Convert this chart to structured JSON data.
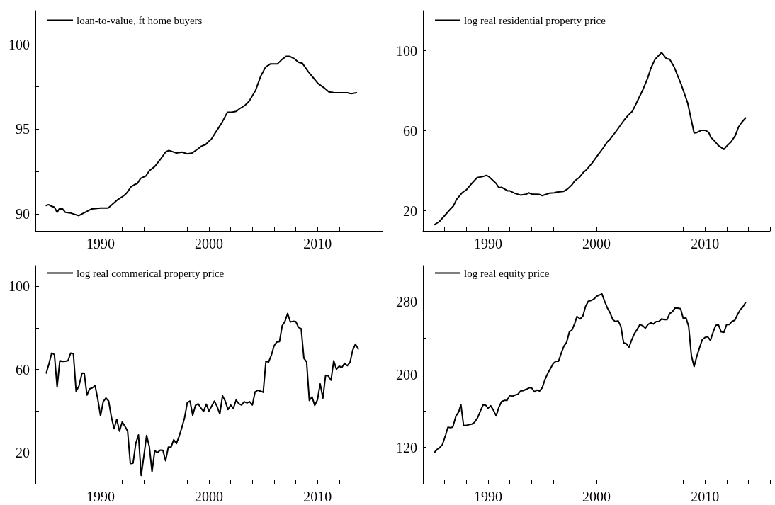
{
  "chart_data": [
    {
      "type": "line",
      "legend": "top left",
      "line_style": "solid",
      "xlim": [
        1984,
        2016
      ],
      "ylim": [
        89,
        102
      ],
      "xticks": [
        {
          "value": 1986,
          "label": null
        },
        {
          "value": 1988,
          "label": null
        },
        1990,
        {
          "value": 1992,
          "label": null
        },
        {
          "value": 1994,
          "label": null
        },
        {
          "value": 1996,
          "label": null
        },
        {
          "value": 1998,
          "label": null
        },
        2000,
        {
          "value": 2002,
          "label": null
        },
        {
          "value": 2004,
          "label": null
        },
        {
          "value": 2006,
          "label": null
        },
        {
          "value": 2008,
          "label": null
        },
        2010,
        {
          "value": 2012,
          "label": null
        },
        {
          "value": 2014,
          "label": null
        },
        {
          "value": 2016,
          "label": null
        }
      ],
      "yticks": [
        90,
        {
          "value": 92.5,
          "label": null
        },
        95,
        {
          "value": 97.5,
          "label": null
        },
        100
      ],
      "x": [
        1985.0,
        1985.2,
        1985.5,
        1985.75,
        1986.0,
        1986.2,
        1986.5,
        1986.75,
        1987.25,
        1988.0,
        1988.6,
        1989.2,
        1990.0,
        1990.7,
        1991.5,
        1992.2,
        1992.5,
        1992.8,
        1993.2,
        1993.4,
        1993.7,
        1994.2,
        1994.5,
        1995.0,
        1995.55,
        1996.0,
        1996.3,
        1997.0,
        1997.5,
        1998.0,
        1998.45,
        1999.0,
        1999.3,
        1999.7,
        2000.0,
        2000.2,
        2000.7,
        2001.2,
        2001.7,
        2002.1,
        2002.5,
        2002.8,
        2003.3,
        2003.7,
        2004.3,
        2004.75,
        2005.2,
        2005.65,
        2006.3,
        2006.7,
        2007.1,
        2007.45,
        2007.9,
        2008.25,
        2008.6,
        2009.15,
        2009.6,
        2010.05,
        2010.6,
        2011.05,
        2011.6,
        2012.2,
        2012.75,
        2013.1,
        2013.6
      ],
      "series": [
        {
          "name": "loan-to-value, ft home buyers",
          "color": "#000000",
          "values": [
            90.5,
            90.55,
            90.45,
            90.4,
            90.1,
            90.3,
            90.3,
            90.1,
            90.05,
            89.9,
            90.1,
            90.3,
            90.35,
            90.35,
            90.8,
            91.1,
            91.3,
            91.6,
            91.75,
            91.8,
            92.1,
            92.25,
            92.55,
            92.8,
            93.25,
            93.65,
            93.75,
            93.6,
            93.65,
            93.55,
            93.6,
            93.85,
            94.0,
            94.1,
            94.3,
            94.4,
            94.9,
            95.4,
            96.0,
            96.0,
            96.05,
            96.2,
            96.4,
            96.65,
            97.3,
            98.1,
            98.65,
            98.85,
            98.85,
            99.1,
            99.3,
            99.3,
            99.15,
            98.95,
            98.9,
            98.4,
            98.05,
            97.7,
            97.45,
            97.2,
            97.15,
            97.15,
            97.15,
            97.1,
            97.15
          ]
        }
      ]
    },
    {
      "type": "line",
      "legend": "top left",
      "line_style": "solid",
      "xlim": [
        1984,
        2016
      ],
      "ylim": [
        10,
        120
      ],
      "xticks": [
        {
          "value": 1986,
          "label": null
        },
        {
          "value": 1988,
          "label": null
        },
        1990,
        {
          "value": 1992,
          "label": null
        },
        {
          "value": 1994,
          "label": null
        },
        {
          "value": 1996,
          "label": null
        },
        {
          "value": 1998,
          "label": null
        },
        2000,
        {
          "value": 2002,
          "label": null
        },
        {
          "value": 2004,
          "label": null
        },
        {
          "value": 2006,
          "label": null
        },
        {
          "value": 2008,
          "label": null
        },
        2010,
        {
          "value": 2012,
          "label": null
        },
        {
          "value": 2014,
          "label": null
        },
        {
          "value": 2016,
          "label": null
        }
      ],
      "yticks": [
        20,
        {
          "value": 40,
          "label": null
        },
        60,
        {
          "value": 80,
          "label": null
        },
        100,
        {
          "value": 120,
          "label": null
        }
      ],
      "x": [
        1985.06,
        1985.5,
        1986.0,
        1986.5,
        1986.8,
        1987.1,
        1987.6,
        1988.0,
        1988.5,
        1989.0,
        1989.5,
        1989.85,
        1990.05,
        1990.75,
        1991.0,
        1991.25,
        1991.8,
        1992.0,
        1992.45,
        1993.0,
        1993.5,
        1993.75,
        1994.05,
        1994.75,
        1995.0,
        1995.65,
        1996.1,
        1996.35,
        1996.95,
        1997.35,
        1997.7,
        1998.0,
        1998.4,
        1998.8,
        1999.05,
        1999.6,
        2000.2,
        2000.6,
        2001.0,
        2001.2,
        2001.9,
        2002.5,
        2002.9,
        2003.3,
        2003.7,
        2004.25,
        2004.7,
        2005.0,
        2005.4,
        2006.0,
        2006.45,
        2006.75,
        2007.15,
        2007.8,
        2008.4,
        2009.0,
        2009.25,
        2009.65,
        2010.05,
        2010.35,
        2010.55,
        2010.9,
        2011.25,
        2011.75,
        2012.0,
        2012.4,
        2012.8,
        2013.1,
        2013.4,
        2013.75
      ],
      "series": [
        {
          "name": "log real residential property price",
          "color": "#000000",
          "values": [
            13.1,
            14.6,
            17.6,
            20.7,
            22.4,
            25.7,
            29.0,
            30.5,
            33.7,
            36.6,
            37.1,
            37.7,
            37.2,
            33.7,
            31.6,
            31.8,
            30.0,
            30.0,
            28.8,
            27.9,
            28.3,
            29.0,
            28.4,
            28.2,
            27.6,
            28.8,
            29.0,
            29.4,
            29.7,
            31.0,
            32.8,
            35.0,
            36.6,
            39.3,
            40.4,
            43.9,
            48.4,
            51.3,
            54.5,
            55.4,
            60.4,
            65.0,
            67.6,
            69.7,
            74.0,
            80.2,
            86.0,
            91.0,
            95.7,
            99.1,
            96.0,
            95.7,
            92.0,
            83.3,
            74.0,
            58.9,
            59.1,
            60.2,
            60.2,
            59.1,
            56.7,
            54.8,
            52.6,
            50.7,
            52.3,
            54.4,
            57.6,
            61.9,
            64.3,
            66.4
          ]
        }
      ]
    },
    {
      "type": "line",
      "legend": "top left",
      "line_style": "solid",
      "xlim": [
        1984,
        2016
      ],
      "ylim": [
        5,
        110
      ],
      "xticks": [
        {
          "value": 1986,
          "label": null
        },
        {
          "value": 1988,
          "label": null
        },
        1990,
        {
          "value": 1992,
          "label": null
        },
        {
          "value": 1994,
          "label": null
        },
        {
          "value": 1996,
          "label": null
        },
        {
          "value": 1998,
          "label": null
        },
        2000,
        {
          "value": 2002,
          "label": null
        },
        {
          "value": 2004,
          "label": null
        },
        {
          "value": 2006,
          "label": null
        },
        {
          "value": 2008,
          "label": null
        },
        2010,
        {
          "value": 2012,
          "label": null
        },
        {
          "value": 2014,
          "label": null
        },
        {
          "value": 2016,
          "label": null
        }
      ],
      "yticks": [
        20,
        {
          "value": 40,
          "label": null
        },
        60,
        {
          "value": 80,
          "label": null
        },
        100
      ],
      "x": [
        1985.0,
        1985.25,
        1985.5,
        1985.75,
        1986.0,
        1986.25,
        1986.5,
        1986.75,
        1987.0,
        1987.25,
        1987.5,
        1987.75,
        1988.0,
        1988.3,
        1988.5,
        1988.75,
        1989.0,
        1989.25,
        1989.5,
        1989.75,
        1990.0,
        1990.25,
        1990.5,
        1990.75,
        1991.0,
        1991.25,
        1991.5,
        1991.75,
        1992.0,
        1992.25,
        1992.5,
        1992.75,
        1993.0,
        1993.25,
        1993.5,
        1993.75,
        1994.0,
        1994.25,
        1994.5,
        1994.75,
        1995.0,
        1995.25,
        1995.5,
        1995.75,
        1996.0,
        1996.25,
        1996.5,
        1996.75,
        1997.0,
        1997.25,
        1997.5,
        1997.75,
        1998.0,
        1998.25,
        1998.5,
        1998.75,
        1999.0,
        1999.25,
        1999.5,
        1999.75,
        2000.0,
        2000.25,
        2000.5,
        2000.75,
        2001.0,
        2001.25,
        2001.5,
        2001.75,
        2002.0,
        2002.25,
        2002.5,
        2002.75,
        2003.0,
        2003.25,
        2003.5,
        2003.75,
        2004.0,
        2004.25,
        2004.5,
        2004.75,
        2005.0,
        2005.25,
        2005.5,
        2005.75,
        2006.0,
        2006.25,
        2006.5,
        2006.75,
        2007.0,
        2007.25,
        2007.5,
        2007.75,
        2008.0,
        2008.25,
        2008.5,
        2008.75,
        2009.0,
        2009.25,
        2009.5,
        2009.75,
        2010.0,
        2010.25,
        2010.5,
        2010.75,
        2011.0,
        2011.25,
        2011.5,
        2011.75,
        2012.0,
        2012.25,
        2012.5,
        2012.75,
        2013.0,
        2013.25,
        2013.5,
        2013.75
      ],
      "series": [
        {
          "name": "log real commerical property price",
          "color": "#000000",
          "values": [
            58.3,
            62.8,
            67.9,
            67.2,
            51.6,
            64.2,
            63.9,
            64.0,
            64.2,
            67.9,
            67.5,
            49.6,
            51.9,
            58.3,
            58.2,
            47.7,
            50.7,
            51.2,
            52.2,
            45.7,
            37.7,
            44.5,
            46.3,
            44.8,
            37.2,
            31.5,
            36.0,
            30.3,
            34.7,
            32.7,
            30.3,
            14.7,
            14.9,
            24.4,
            28.5,
            9.0,
            18.5,
            28.3,
            22.9,
            10.8,
            20.9,
            20.0,
            21.2,
            21.1,
            16.1,
            22.6,
            22.6,
            26.2,
            24.4,
            27.9,
            32.1,
            36.8,
            44.1,
            44.8,
            38.0,
            42.7,
            43.5,
            41.5,
            39.8,
            43.3,
            40.0,
            42.4,
            44.8,
            42.1,
            38.6,
            47.4,
            44.8,
            40.7,
            42.9,
            41.3,
            45.3,
            43.6,
            42.9,
            44.5,
            43.9,
            44.5,
            42.9,
            49.2,
            50.0,
            49.6,
            49.0,
            64.0,
            63.6,
            66.9,
            71.4,
            73.2,
            73.4,
            81.1,
            83.1,
            87.0,
            82.9,
            83.2,
            83.1,
            80.3,
            79.6,
            65.4,
            63.7,
            45.1,
            46.8,
            42.7,
            45.4,
            53.1,
            46.2,
            57.2,
            56.9,
            54.9,
            64.2,
            60.1,
            61.6,
            61.0,
            63.0,
            61.8,
            63.4,
            69.3,
            72.2,
            69.9
          ]
        }
      ]
    },
    {
      "type": "line",
      "legend": "top left",
      "line_style": "solid",
      "xlim": [
        1984,
        2016
      ],
      "ylim": [
        80,
        320
      ],
      "xticks": [
        {
          "value": 1986,
          "label": null
        },
        {
          "value": 1988,
          "label": null
        },
        1990,
        {
          "value": 1992,
          "label": null
        },
        {
          "value": 1994,
          "label": null
        },
        {
          "value": 1996,
          "label": null
        },
        {
          "value": 1998,
          "label": null
        },
        2000,
        {
          "value": 2002,
          "label": null
        },
        {
          "value": 2004,
          "label": null
        },
        {
          "value": 2006,
          "label": null
        },
        {
          "value": 2008,
          "label": null
        },
        2010,
        {
          "value": 2012,
          "label": null
        },
        {
          "value": 2014,
          "label": null
        },
        {
          "value": 2016,
          "label": null
        }
      ],
      "yticks": [
        120,
        {
          "value": 160,
          "label": null
        },
        200,
        {
          "value": 240,
          "label": null
        },
        280,
        {
          "value": 320,
          "label": null
        }
      ],
      "x": [
        1985.05,
        1985.3,
        1985.5,
        1985.8,
        1986.1,
        1986.3,
        1986.55,
        1986.75,
        1987.05,
        1987.3,
        1987.5,
        1987.75,
        1988.0,
        1988.3,
        1988.5,
        1988.75,
        1989.05,
        1989.3,
        1989.55,
        1989.8,
        1990.0,
        1990.25,
        1990.5,
        1990.75,
        1991.0,
        1991.25,
        1991.5,
        1991.75,
        1992.0,
        1992.25,
        1992.5,
        1992.75,
        1993.0,
        1993.25,
        1993.5,
        1993.8,
        1994.0,
        1994.3,
        1994.5,
        1994.75,
        1995.0,
        1995.25,
        1995.5,
        1995.75,
        1996.0,
        1996.25,
        1996.5,
        1996.75,
        1997.0,
        1997.25,
        1997.5,
        1997.75,
        1998.0,
        1998.2,
        1998.5,
        1998.75,
        1999.0,
        1999.25,
        1999.5,
        1999.8,
        2000.0,
        2000.25,
        2000.5,
        2000.75,
        2001.0,
        2001.25,
        2001.5,
        2001.75,
        2002.0,
        2002.25,
        2002.5,
        2002.75,
        2003.0,
        2003.25,
        2003.5,
        2003.75,
        2004.0,
        2004.25,
        2004.5,
        2004.75,
        2005.0,
        2005.25,
        2005.5,
        2005.75,
        2006.0,
        2006.25,
        2006.5,
        2006.75,
        2007.0,
        2007.25,
        2007.5,
        2007.75,
        2008.0,
        2008.25,
        2008.5,
        2008.75,
        2009.0,
        2009.25,
        2009.5,
        2009.75,
        2010.0,
        2010.25,
        2010.5,
        2010.75,
        2011.0,
        2011.25,
        2011.5,
        2011.75,
        2012.0,
        2012.25,
        2012.5,
        2012.75,
        2013.0,
        2013.25,
        2013.5,
        2013.75
      ],
      "series": [
        {
          "name": "log real equity price",
          "color": "#000000",
          "values": [
            114.3,
            117.8,
            119.2,
            123.2,
            134.0,
            142.1,
            141.8,
            142.4,
            154.7,
            159.1,
            167.1,
            143.9,
            144.2,
            145.3,
            145.6,
            147.5,
            152.9,
            160.1,
            166.9,
            166.3,
            163.1,
            165.8,
            160.9,
            154.7,
            164.2,
            170.4,
            171.7,
            171.7,
            177.1,
            176.3,
            177.6,
            178.5,
            182.0,
            182.5,
            183.8,
            185.5,
            185.7,
            181.1,
            183.0,
            182.0,
            185.7,
            194.6,
            201.3,
            206.7,
            212.1,
            214.8,
            214.8,
            223.7,
            231.5,
            235.8,
            247.1,
            249.3,
            256.6,
            264.1,
            261.4,
            264.6,
            275.4,
            280.8,
            281.6,
            283.5,
            286.2,
            287.5,
            288.9,
            280.8,
            273.5,
            268.1,
            260.6,
            258.4,
            259.3,
            253.1,
            235.0,
            234.2,
            230.2,
            238.5,
            245.3,
            249.8,
            255.2,
            253.9,
            251.2,
            255.2,
            257.1,
            255.8,
            258.4,
            258.4,
            261.4,
            260.6,
            260.6,
            267.3,
            269.2,
            273.5,
            273.3,
            272.7,
            262.0,
            262.5,
            253.1,
            221.0,
            208.9,
            220.2,
            229.6,
            238.5,
            240.9,
            241.8,
            237.7,
            246.6,
            254.4,
            254.7,
            247.1,
            246.6,
            255.2,
            255.2,
            258.7,
            259.8,
            266.0,
            271.4,
            274.6,
            279.5
          ]
        }
      ]
    }
  ]
}
